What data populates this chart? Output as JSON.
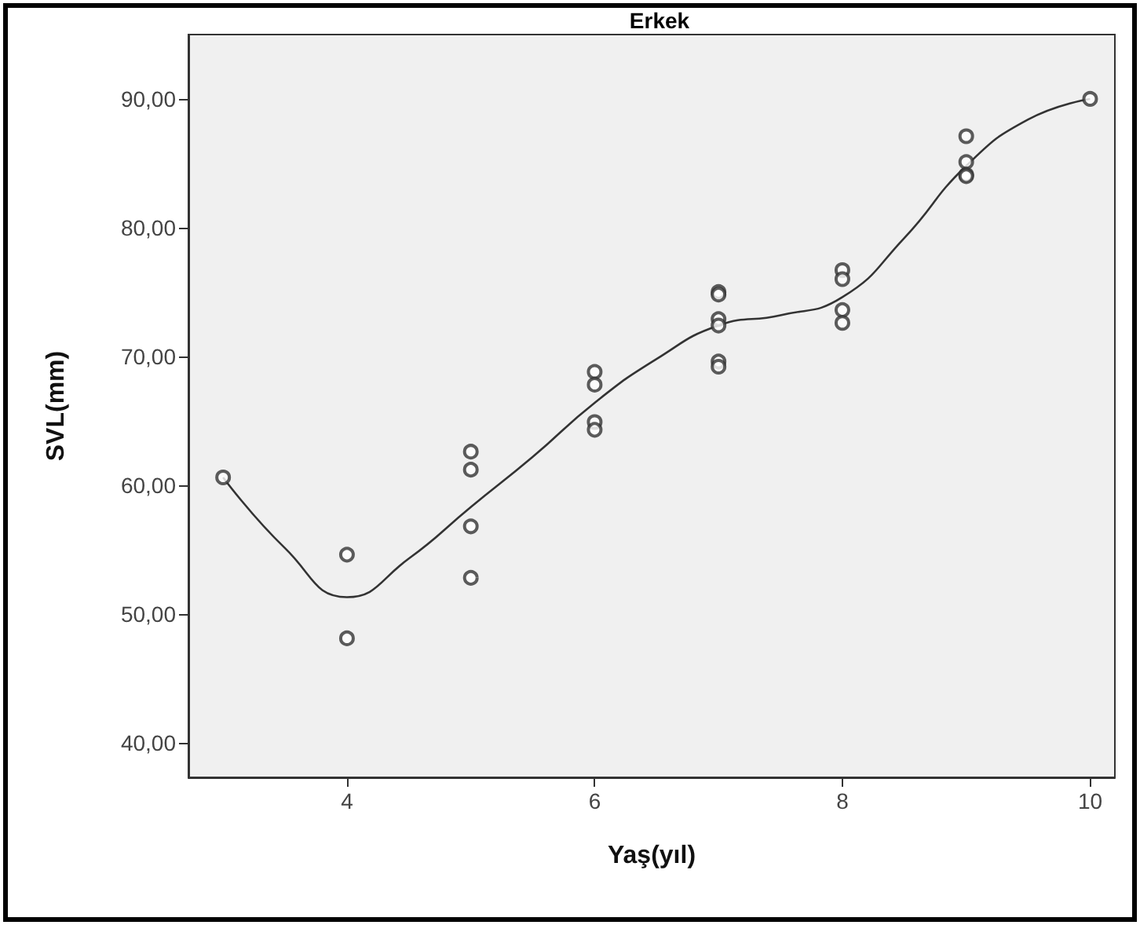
{
  "chart_data": {
    "type": "scatter",
    "title": "Erkek",
    "xlabel": "Yaş(yıl)",
    "ylabel": "SVL(mm)",
    "xlim": [
      2.72,
      10.2
    ],
    "xticks": [
      4,
      6,
      8,
      10
    ],
    "ylim": [
      37.3,
      95
    ],
    "yticks": [
      {
        "value": 40,
        "label": "40,00"
      },
      {
        "value": 50,
        "label": "50,00"
      },
      {
        "value": 60,
        "label": "60,00"
      },
      {
        "value": 70,
        "label": "70,00"
      },
      {
        "value": 80,
        "label": "80,00"
      },
      {
        "value": 90,
        "label": "90,00"
      }
    ],
    "grid": false,
    "series": [
      {
        "color": "#333333",
        "marker": "circle",
        "x": [
          3,
          4,
          4,
          5,
          5,
          5,
          5,
          6,
          6,
          6,
          6,
          7,
          7,
          7,
          7,
          7,
          7,
          8,
          8,
          8,
          8,
          9,
          9,
          9,
          9,
          10
        ],
        "values": [
          60.6,
          54.6,
          48.1,
          62.6,
          61.2,
          56.8,
          52.8,
          68.8,
          67.8,
          64.9,
          64.3,
          75.0,
          74.8,
          72.9,
          72.4,
          69.6,
          69.2,
          76.7,
          76.0,
          73.6,
          72.6,
          87.1,
          85.1,
          84.1,
          84.0,
          90.0
        ]
      },
      {
        "type": "line",
        "color": "#333333",
        "marker": "none",
        "line_style": "solid",
        "x": [
          3,
          3.5,
          4,
          4.5,
          5,
          5.5,
          6,
          6.5,
          7,
          7.5,
          8,
          8.5,
          9,
          9.5,
          10
        ],
        "values": [
          60.6,
          55.1,
          51.3,
          54.3,
          58.3,
          62.2,
          66.4,
          69.8,
          72.4,
          73.2,
          74.6,
          79.2,
          84.8,
          88.4,
          90.0
        ]
      }
    ]
  }
}
